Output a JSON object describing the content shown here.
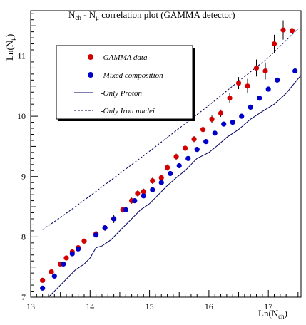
{
  "chart_data": {
    "type": "scatter",
    "title_parts": {
      "a": "N",
      "a_sub": "ch",
      "b": " - N",
      "b_sub": "μ",
      "c": " correlation plot (GAMMA detector)"
    },
    "xlabel_parts": {
      "main": "Ln(N",
      "sub": "ch",
      "end": ")"
    },
    "ylabel_parts": {
      "main": "Ln(N",
      "sub": "μ",
      "end": ")"
    },
    "xlim": [
      13,
      17.55
    ],
    "ylim": [
      7,
      11.75
    ],
    "x_ticks": [
      "13",
      "14",
      "15",
      "16",
      "17"
    ],
    "y_ticks": [
      "7",
      "8",
      "9",
      "10",
      "11"
    ],
    "legend_placement": "top-left",
    "colors": {
      "gamma": "#d40000",
      "mixed": "#0000c8",
      "line": "#000060"
    },
    "legend": [
      {
        "label": "-GAMMA data",
        "kind": "marker",
        "color": "#d40000"
      },
      {
        "label": "-Mixed composition",
        "kind": "marker",
        "color": "#0000c8"
      },
      {
        "label": "-Only Proton",
        "kind": "solid"
      },
      {
        "label": "-Only Iron nuclei",
        "kind": "dashed"
      }
    ],
    "series": [
      {
        "name": "-GAMMA data",
        "style": "marker",
        "color": "#d40000",
        "x": [
          13.2,
          13.35,
          13.5,
          13.6,
          13.7,
          13.8,
          13.9,
          14.1,
          14.25,
          14.4,
          14.55,
          14.7,
          14.8,
          14.9,
          15.05,
          15.2,
          15.3,
          15.45,
          15.6,
          15.75,
          15.9,
          16.05,
          16.2,
          16.35,
          16.5,
          16.65,
          16.8,
          16.95,
          17.1,
          17.25,
          17.4
        ],
        "y": [
          7.28,
          7.42,
          7.55,
          7.65,
          7.75,
          7.82,
          7.93,
          8.05,
          8.15,
          8.3,
          8.45,
          8.6,
          8.72,
          8.75,
          8.93,
          8.98,
          9.15,
          9.33,
          9.47,
          9.62,
          9.78,
          9.95,
          10.05,
          10.3,
          10.55,
          10.5,
          10.8,
          10.75,
          11.2,
          11.43,
          11.42
        ],
        "yerr": [
          0.04,
          0.04,
          0.04,
          0.04,
          0.04,
          0.04,
          0.04,
          0.05,
          0.05,
          0.07,
          0.05,
          0.05,
          0.05,
          0.05,
          0.05,
          0.05,
          0.05,
          0.05,
          0.05,
          0.05,
          0.05,
          0.06,
          0.06,
          0.08,
          0.1,
          0.12,
          0.14,
          0.14,
          0.15,
          0.16,
          0.18
        ]
      },
      {
        "name": "-Mixed composition",
        "style": "marker",
        "color": "#0000c8",
        "x": [
          13.2,
          13.4,
          13.55,
          13.7,
          13.8,
          14.1,
          14.25,
          14.4,
          14.6,
          14.75,
          14.9,
          15.05,
          15.2,
          15.35,
          15.5,
          15.65,
          15.8,
          15.95,
          16.1,
          16.25,
          16.4,
          16.55,
          16.7,
          16.85,
          17.0,
          17.15,
          17.45
        ],
        "y": [
          7.15,
          7.35,
          7.55,
          7.72,
          7.8,
          8.03,
          8.15,
          8.3,
          8.45,
          8.6,
          8.68,
          8.78,
          8.9,
          9.05,
          9.18,
          9.3,
          9.45,
          9.58,
          9.72,
          9.87,
          9.9,
          10.0,
          10.15,
          10.3,
          10.45,
          10.6,
          10.75
        ]
      },
      {
        "name": "-Only Proton",
        "style": "solid",
        "x": [
          13.3,
          13.45,
          13.6,
          13.75,
          13.9,
          14.0,
          14.1,
          14.2,
          14.35,
          14.5,
          14.7,
          14.85,
          15.0,
          15.15,
          15.3,
          15.45,
          15.6,
          15.8,
          16.0,
          16.15,
          16.3,
          16.5,
          16.7,
          16.9,
          17.1,
          17.3,
          17.55
        ],
        "y": [
          6.95,
          7.15,
          7.3,
          7.45,
          7.55,
          7.65,
          7.82,
          7.85,
          7.95,
          8.1,
          8.3,
          8.45,
          8.55,
          8.7,
          8.85,
          8.98,
          9.1,
          9.3,
          9.4,
          9.52,
          9.65,
          9.78,
          9.95,
          10.08,
          10.2,
          10.38,
          10.68
        ]
      },
      {
        "name": "-Only Iron nuclei",
        "style": "dashed",
        "x": [
          13.2,
          13.5,
          14.0,
          14.5,
          15.0,
          15.5,
          16.0,
          16.5,
          17.0,
          17.5
        ],
        "y": [
          8.12,
          8.32,
          8.68,
          9.05,
          9.42,
          9.8,
          10.18,
          10.58,
          10.97,
          11.45
        ]
      }
    ]
  }
}
